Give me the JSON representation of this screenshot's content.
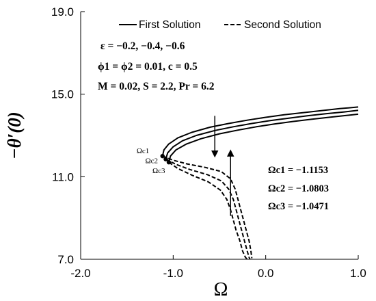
{
  "chart_data": {
    "type": "line",
    "xlabel": "Ω",
    "ylabel": "−θ′(0)",
    "xlim": [
      -2.0,
      1.0
    ],
    "ylim": [
      7.0,
      19.0
    ],
    "xticks": [
      "-2.0",
      "-1.0",
      "0.0",
      "1.0"
    ],
    "yticks": [
      "7.0",
      "11.0",
      "15.0",
      "19.0"
    ],
    "grid": false,
    "legend": {
      "placement": "top",
      "entries": [
        {
          "label": "First Solution",
          "style": "solid"
        },
        {
          "label": "Second Solution",
          "style": "dashed"
        }
      ]
    },
    "annotations": {
      "line1": "ε = −0.2, −0.4, −0.6",
      "line2": "ϕ1 = ϕ2 = 0.01, c = 0.5",
      "line3": "M = 0.02, S = 2.2, Pr = 6.2"
    },
    "critical_points": [
      {
        "label": "Ωc1",
        "value_text": "Ωc1 = −1.1153",
        "x": -1.1153,
        "y": 12.0
      },
      {
        "label": "Ωc2",
        "value_text": "Ωc2 = −1.0803",
        "x": -1.0803,
        "y": 11.85
      },
      {
        "label": "Ωc3",
        "value_text": "Ωc3 = −1.0471",
        "x": -1.0471,
        "y": 11.7
      }
    ],
    "series": [
      {
        "style": "solid",
        "x": [
          -1.1153,
          -1.1,
          -1.05,
          -0.95,
          -0.8,
          -0.6,
          -0.4,
          -0.2,
          0.0,
          0.2,
          0.4,
          0.6,
          0.8,
          1.0
        ],
        "y": [
          12.0,
          12.3,
          12.58,
          12.88,
          13.15,
          13.4,
          13.58,
          13.74,
          13.88,
          14.0,
          14.1,
          14.2,
          14.3,
          14.38
        ]
      },
      {
        "style": "solid",
        "x": [
          -1.0803,
          -1.06,
          -1.0,
          -0.9,
          -0.75,
          -0.55,
          -0.35,
          -0.15,
          0.05,
          0.25,
          0.45,
          0.65,
          0.85,
          1.0
        ],
        "y": [
          11.85,
          12.15,
          12.45,
          12.74,
          13.0,
          13.24,
          13.42,
          13.58,
          13.72,
          13.84,
          13.95,
          14.05,
          14.14,
          14.22
        ]
      },
      {
        "style": "solid",
        "x": [
          -1.0471,
          -1.03,
          -0.97,
          -0.86,
          -0.7,
          -0.5,
          -0.3,
          -0.1,
          0.1,
          0.3,
          0.5,
          0.7,
          0.9,
          1.0
        ],
        "y": [
          11.7,
          12.0,
          12.3,
          12.58,
          12.84,
          13.08,
          13.26,
          13.42,
          13.56,
          13.68,
          13.79,
          13.89,
          13.98,
          14.03
        ]
      },
      {
        "style": "dashed",
        "x": [
          -1.1153,
          -1.0,
          -0.85,
          -0.65,
          -0.48,
          -0.38,
          -0.33,
          -0.3,
          -0.27,
          -0.24,
          -0.21,
          -0.18,
          -0.16,
          -0.15
        ],
        "y": [
          12.0,
          11.8,
          11.62,
          11.45,
          11.25,
          10.9,
          10.4,
          9.9,
          9.4,
          8.9,
          8.4,
          7.9,
          7.4,
          7.05
        ]
      },
      {
        "style": "dashed",
        "x": [
          -1.0803,
          -0.97,
          -0.82,
          -0.63,
          -0.48,
          -0.4,
          -0.35,
          -0.32,
          -0.29,
          -0.26,
          -0.23,
          -0.2,
          -0.18,
          -0.17
        ],
        "y": [
          11.85,
          11.6,
          11.35,
          11.1,
          10.8,
          10.4,
          9.9,
          9.4,
          8.9,
          8.4,
          7.9,
          7.4,
          7.1,
          7.0
        ]
      },
      {
        "style": "dashed",
        "x": [
          -1.0471,
          -0.95,
          -0.8,
          -0.62,
          -0.49,
          -0.42,
          -0.38,
          -0.35,
          -0.32,
          -0.28,
          -0.25,
          -0.22,
          -0.2,
          -0.19
        ],
        "y": [
          11.7,
          11.4,
          11.08,
          10.75,
          10.35,
          9.9,
          9.4,
          8.9,
          8.4,
          7.9,
          7.4,
          7.1,
          7.0,
          7.0
        ]
      }
    ],
    "arrows": [
      {
        "direction": "down",
        "x": -0.55,
        "y_from": 13.95,
        "y_to": 12.1
      },
      {
        "direction": "up",
        "x": -0.38,
        "y_from": 9.1,
        "y_to": 12.15
      }
    ]
  }
}
